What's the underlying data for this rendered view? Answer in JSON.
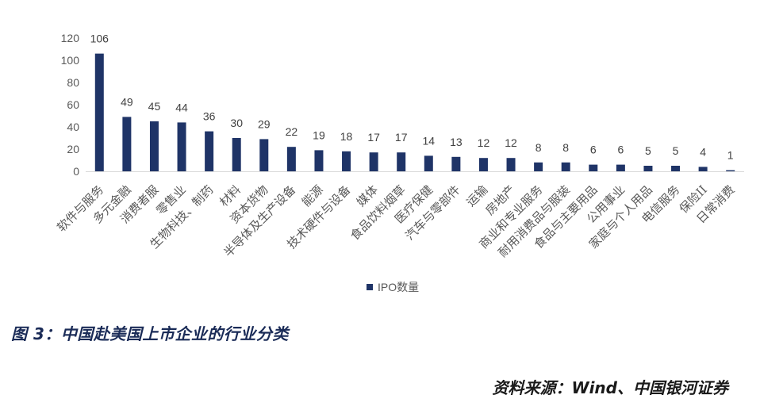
{
  "chart_data": {
    "type": "bar",
    "categories": [
      "软件与服务",
      "多元金融",
      "消费者服",
      "零售业",
      "生物科技、制药",
      "材料",
      "资本货物",
      "半导体及生产设备",
      "能源",
      "技术硬件与设备",
      "媒体",
      "食品饮料烟草",
      "医疗保健",
      "汽车与零部件",
      "运输",
      "房地产",
      "商业和专业服务",
      "耐用消费品与服装",
      "食品与主要用品",
      "公用事业",
      "家庭与个人用品",
      "电信服务",
      "保险II",
      "日常消费"
    ],
    "series": [
      {
        "name": "IPO数量",
        "values": [
          106,
          49,
          45,
          44,
          36,
          30,
          29,
          22,
          19,
          18,
          17,
          17,
          14,
          13,
          12,
          12,
          8,
          8,
          6,
          6,
          5,
          5,
          4,
          1
        ]
      }
    ],
    "ylim": [
      0,
      120
    ],
    "yticks": [
      0,
      20,
      40,
      60,
      80,
      100,
      120
    ],
    "legend_position": "bottom",
    "grid": false,
    "bar_color": "#1f3467"
  },
  "caption": "图 3：中国赴美国上市企业的行业分类",
  "source": "资料来源：Wind、中国银河证券"
}
